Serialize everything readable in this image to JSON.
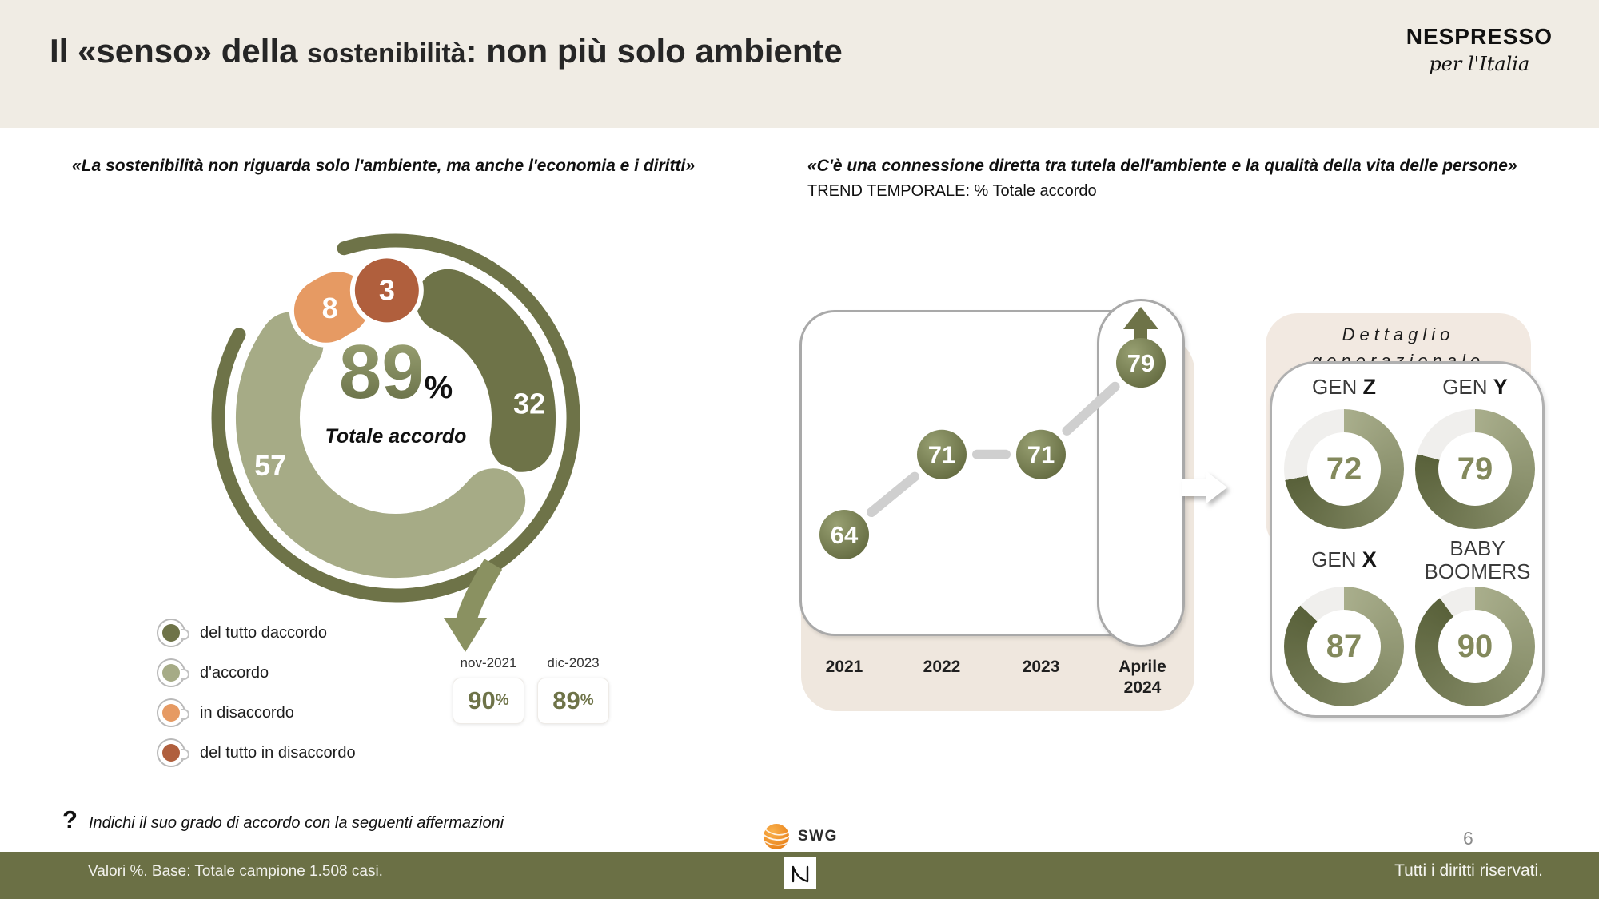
{
  "header": {
    "title1": "Il «senso» della ",
    "title2": "sostenibilità",
    "title3": ": non più solo ambiente",
    "brand_name": "NESPRESSO",
    "brand_tagline": "per l'Italia"
  },
  "left": {
    "quote": "«La sostenibilità non riguarda solo l'ambiente, ma anche l'economia e i diritti»",
    "center": {
      "value": "89",
      "percent": "%",
      "label": "Totale accordo"
    },
    "legend": [
      {
        "label": "del tutto daccordo",
        "color": "#6e7348"
      },
      {
        "label": "d'accordo",
        "color": "#a6ab86"
      },
      {
        "label": "in disaccordo",
        "color": "#e69a63"
      },
      {
        "label": "del tutto in disaccordo",
        "color": "#b05f3d"
      }
    ],
    "history": [
      {
        "label": "nov-2021",
        "value": "90",
        "percent": "%"
      },
      {
        "label": "dic-2023",
        "value": "89",
        "percent": "%"
      }
    ]
  },
  "right": {
    "quote": "«C'è una connessione diretta tra tutela dell'ambiente e la qualità della vita delle persone»",
    "subtitle": "TREND TEMPORALE: % Totale accordo",
    "detail": {
      "title1": "Dettaglio",
      "title2": "generazionale",
      "groups": [
        {
          "prefix": "GEN ",
          "bold": "Z"
        },
        {
          "prefix": "GEN ",
          "bold": "Y"
        },
        {
          "prefix": "GEN ",
          "bold": "X"
        },
        {
          "prefix": "BABY BOOMERS",
          "bold": ""
        }
      ]
    }
  },
  "footer": {
    "question_mark": "?",
    "question": "Indichi il suo grado di accordo con la seguenti affermazioni",
    "swg_label": "SWG",
    "base_note": "Valori %. Base: Totale campione 1.508 casi.",
    "rights": "Tutti i diritti riservati.",
    "page_number": "6"
  },
  "colors": {
    "olive_dark": "#6e7348",
    "sage": "#a6ab86",
    "orange": "#e69a63",
    "terracotta": "#b05f3d",
    "bar_olive": "#6b7045",
    "header_beige": "#f0ece4",
    "panel_beige": "#efe7de",
    "detail_beige": "#f2e9e1",
    "trend_line_gray": "#cfcfcf",
    "donut_rest_gray": "#f0efed",
    "arrow_olive": "#8a9161"
  },
  "chart_data": [
    {
      "type": "pie",
      "title": "«La sostenibilità non riguarda solo l'ambiente, ma anche l'economia e i diritti»",
      "labels": [
        "del tutto daccordo",
        "d'accordo",
        "in disaccordo",
        "del tutto in disaccordo"
      ],
      "values": [
        32,
        57,
        8,
        3
      ],
      "colors": [
        "#6e7348",
        "#a6ab86",
        "#e69a63",
        "#b05f3d"
      ],
      "center_label": "Totale accordo",
      "center_value": 89,
      "history": [
        {
          "label": "nov-2021",
          "value": 90
        },
        {
          "label": "dic-2023",
          "value": 89
        }
      ]
    },
    {
      "type": "line",
      "title": "TREND TEMPORALE: % Totale accordo",
      "x": [
        "2021",
        "2022",
        "2023",
        "Aprile 2024"
      ],
      "values": [
        64,
        71,
        71,
        79
      ],
      "point_color": "#6e7348",
      "line_color": "#cfcfcf",
      "highlight_last": true
    },
    {
      "type": "pie",
      "title": "Dettaglio generazionale",
      "series": [
        {
          "name": "GEN Z",
          "value": 72
        },
        {
          "name": "GEN Y",
          "value": 79
        },
        {
          "name": "GEN X",
          "value": 87
        },
        {
          "name": "BABY BOOMERS",
          "value": 90
        }
      ],
      "fill_gradient": [
        "#a9ae8c",
        "#59613a"
      ],
      "rest_color": "#f0efed"
    }
  ]
}
